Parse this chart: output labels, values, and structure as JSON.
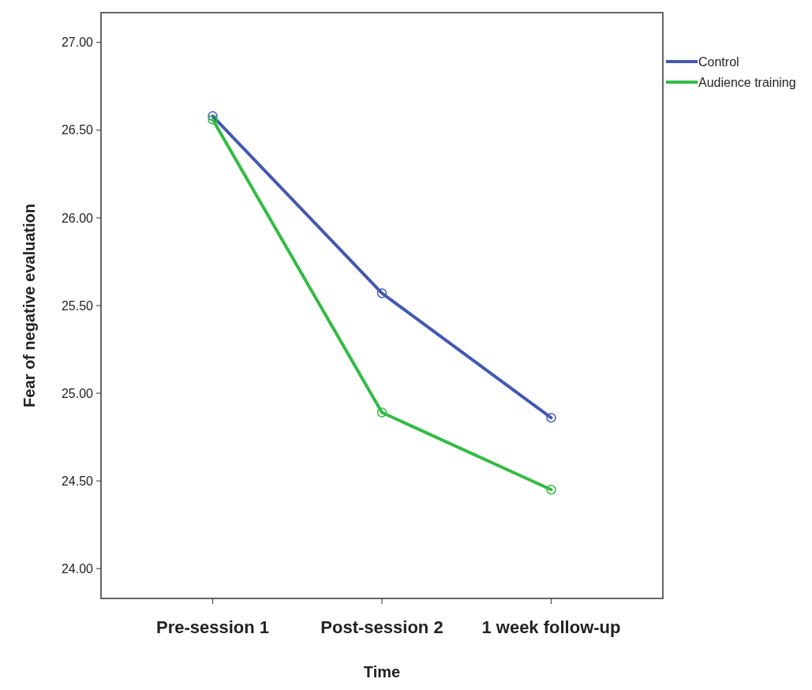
{
  "chart_data": {
    "type": "line",
    "xlabel": "Time",
    "ylabel": "Fear of negative evaluation",
    "categories": [
      "Pre-session 1",
      "Post-session 2",
      "1 week follow-up"
    ],
    "series": [
      {
        "name": "Control",
        "color": "#4458b0",
        "values": [
          26.58,
          25.57,
          24.86
        ]
      },
      {
        "name": "Audience training",
        "color": "#33bb44",
        "values": [
          26.56,
          24.89,
          24.45
        ]
      }
    ],
    "ylim": [
      23.83,
      27.17
    ],
    "yticks": [
      {
        "value": 24,
        "label": "24.00"
      },
      {
        "value": 24.5,
        "label": "24.50"
      },
      {
        "value": 25,
        "label": "25.00"
      },
      {
        "value": 25.5,
        "label": "25.50"
      },
      {
        "value": 26,
        "label": "26.00"
      },
      {
        "value": 26.5,
        "label": "26.50"
      },
      {
        "value": 27,
        "label": "27.00"
      }
    ],
    "grid": false,
    "legend": "top right",
    "marker": "circle",
    "line_style": "solid"
  }
}
